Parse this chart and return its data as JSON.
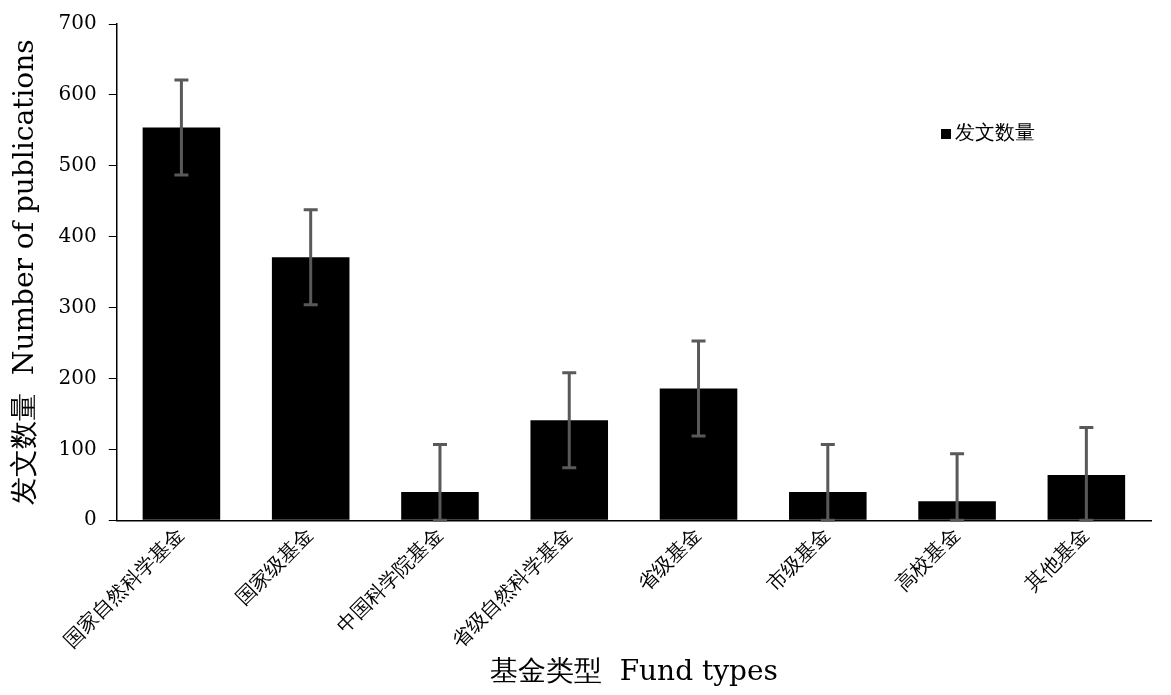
{
  "chart_data": {
    "type": "bar",
    "categories": [
      "国家自然科学基金",
      "国家级基金",
      "中国科学院基金",
      "省级自然科学基金",
      "省级基金",
      "市级基金",
      "高校基金",
      "其他基金"
    ],
    "series": [
      {
        "name": "发文数量",
        "color": "#000000",
        "values": [
          554,
          371,
          40,
          141,
          186,
          40,
          27,
          64
        ],
        "errors": [
          [
            487,
            621
          ],
          [
            304,
            438
          ],
          [
            0,
            107
          ],
          [
            74,
            208
          ],
          [
            119,
            253
          ],
          [
            0,
            107
          ],
          [
            0,
            94
          ],
          [
            0,
            131
          ]
        ]
      }
    ],
    "xlabel": "基金类型  Fund types",
    "ylabel": "发文数量  Number of publications",
    "ylim": [
      0,
      700
    ],
    "yticks": [
      0,
      100,
      200,
      300,
      400,
      500,
      600,
      700
    ],
    "grid": false,
    "legend": "top right"
  }
}
